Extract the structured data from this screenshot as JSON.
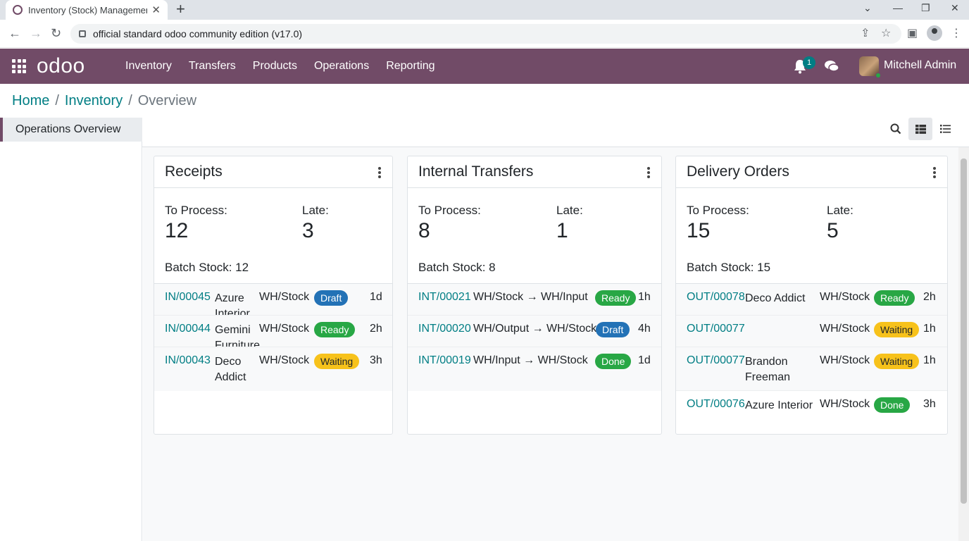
{
  "browser": {
    "tab_title": "Inventory (Stock) Management",
    "url": "official standard odoo community edition (v17.0)"
  },
  "navbar": {
    "logo": "odoo",
    "menu": [
      "Inventory",
      "Transfers",
      "Products",
      "Operations",
      "Reporting"
    ],
    "notification_count": "1",
    "user_name": "Mitchell Admin"
  },
  "breadcrumb": {
    "home": "Home",
    "sep1": "/",
    "inventory": "Inventory",
    "sep2": "/",
    "current": "Overview"
  },
  "sidebar": {
    "active_item": "Operations Overview"
  },
  "cards": [
    {
      "title": "Receipts",
      "to_process_label": "To Process:",
      "to_process": "12",
      "late_label": "Late:",
      "late": "3",
      "batch": "Batch Stock: 12",
      "rows": [
        {
          "ref": "IN/00045",
          "partner": "Azure Interior",
          "location": "WH/Stock",
          "status": "Draft",
          "age": "1d"
        },
        {
          "ref": "IN/00044",
          "partner": "Gemini Furniture",
          "location": "WH/Stock",
          "status": "Ready",
          "age": "2h"
        },
        {
          "ref": "IN/00043",
          "partner": "Deco Addict",
          "location": "WH/Stock",
          "status": "Waiting",
          "age": "3h"
        }
      ]
    },
    {
      "title": "Internal Transfers",
      "to_process_label": "To Process:",
      "to_process": "8",
      "late_label": "Late:",
      "late": "1",
      "batch": "Batch Stock: 8",
      "rows": [
        {
          "ref": "INT/00021",
          "location": "WH/Stock → WH/Input",
          "status": "Ready",
          "age": "1h"
        },
        {
          "ref": "INT/00020",
          "location": "WH/Output → WH/Stock",
          "status": "Draft",
          "age": "4h"
        },
        {
          "ref": "INT/00019",
          "location": "WH/Input → WH/Stock",
          "status": "Done",
          "age": "1d"
        }
      ]
    },
    {
      "title": "Delivery Orders",
      "to_process_label": "To Process:",
      "to_process": "15",
      "late_label": "Late:",
      "late": "5",
      "batch": "Batch Stock: 15",
      "rows": [
        {
          "ref": "OUT/00078",
          "partner": "Deco Addict",
          "location": "WH/Stock",
          "status": "Ready",
          "age": "2h"
        },
        {
          "ref": "OUT/00077",
          "partner": "",
          "location": "WH/Stock",
          "status": "Waiting",
          "age": "1h"
        },
        {
          "ref": "OUT/00077",
          "partner": "Brandon Freeman",
          "location": "WH/Stock",
          "status": "Waiting",
          "age": "1h"
        },
        {
          "ref": "OUT/00076",
          "partner": "Azure Interior",
          "location": "WH/Stock",
          "status": "Done",
          "age": "3h"
        }
      ]
    }
  ],
  "colors": {
    "brand": "#714b67",
    "link": "#017e84",
    "draft": "#2372b6",
    "ready": "#28a745",
    "waiting": "#f7c21b"
  }
}
